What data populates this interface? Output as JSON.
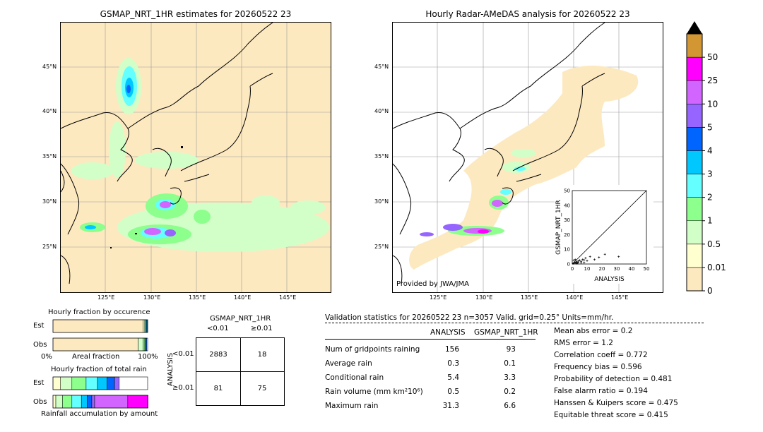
{
  "left_map": {
    "title": "GSMAP_NRT_1HR estimates for 20260522 23",
    "lat_labels": [
      "45°N",
      "40°N",
      "35°N",
      "30°N",
      "25°N"
    ],
    "lon_labels": [
      "125°E",
      "130°E",
      "135°E",
      "140°E",
      "145°E"
    ]
  },
  "right_map": {
    "title": "Hourly Radar-AMeDAS analysis for 20260522 23",
    "lat_labels": [
      "45°N",
      "40°N",
      "35°N",
      "30°N",
      "25°N"
    ],
    "lon_labels": [
      "125°E",
      "130°E",
      "135°E",
      "140°E",
      "145°E"
    ],
    "credit": "Provided by JWA/JMA"
  },
  "colorbar": {
    "levels": [
      "0",
      "0.01",
      "0.5",
      "1",
      "2",
      "3",
      "4",
      "5",
      "10",
      "25",
      "50"
    ],
    "colors": [
      "#fde9c0",
      "#ffffd0",
      "#d2ffc8",
      "#8cff8c",
      "#64ffff",
      "#00c8ff",
      "#0064ff",
      "#9664ff",
      "#d264ff",
      "#ff00ff",
      "#d29632"
    ]
  },
  "scatter_inset": {
    "xlabel": "ANALYSIS",
    "ylabel": "GSMAP_NRT_1HR",
    "ticks": [
      "0",
      "10",
      "20",
      "30",
      "40",
      "50"
    ]
  },
  "occurrence": {
    "title": "Hourly fraction by occurence",
    "est_label": "Est",
    "obs_label": "Obs",
    "axis_left": "0%",
    "axis_mid": "Areal fraction",
    "axis_right": "100%"
  },
  "total_rain": {
    "title": "Hourly fraction of total rain",
    "est_label": "Est",
    "obs_label": "Obs",
    "footer": "Rainfall accumulation by amount"
  },
  "contingency": {
    "title": "GSMAP_NRT_1HR",
    "col_lt": "<0.01",
    "col_ge": "≥0.01",
    "row_axis": "ANALYSIS",
    "row_lt": "<0.01",
    "row_ge": "≥0.01",
    "a": "2883",
    "b": "18",
    "c": "81",
    "d": "75"
  },
  "validation": {
    "header": "Validation statistics for 20260522 23  n=3057 Valid. grid=0.25° Units=mm/hr.",
    "col_analysis": "ANALYSIS",
    "col_gsmap": "GSMAP_NRT_1HR",
    "rows": [
      {
        "label": "Num of gridpoints raining",
        "analysis": "156",
        "gsmap": "93"
      },
      {
        "label": "Average rain",
        "analysis": "0.3",
        "gsmap": "0.1"
      },
      {
        "label": "Conditional rain",
        "analysis": "5.4",
        "gsmap": "3.3"
      },
      {
        "label": "Rain volume (mm km²10⁶)",
        "analysis": "0.5",
        "gsmap": "0.2"
      },
      {
        "label": "Maximum rain",
        "analysis": "31.3",
        "gsmap": "6.6"
      }
    ],
    "scores": [
      "Mean abs error =    0.2",
      "RMS error =    1.2",
      "Correlation coeff =  0.772",
      "Frequency bias =  0.596",
      "Probability of detection =  0.481",
      "False alarm ratio =  0.194",
      "Hanssen & Kuipers score =  0.475",
      "Equitable threat score =  0.415"
    ]
  },
  "chart_data": [
    {
      "type": "scatter",
      "xlabel": "ANALYSIS",
      "ylabel": "GSMAP_NRT_1HR",
      "xlim": [
        0,
        50
      ],
      "ylim": [
        0,
        50
      ],
      "x": [
        0.5,
        1,
        1.5,
        2,
        2.5,
        3,
        3.5,
        4,
        5,
        6,
        7,
        8,
        9,
        10,
        12,
        15,
        18,
        22,
        31.3,
        1,
        2,
        3,
        4,
        6,
        8
      ],
      "y": [
        0.3,
        0.5,
        1,
        0.8,
        1.2,
        1.5,
        0.6,
        2,
        2.5,
        1.8,
        3,
        1,
        4,
        2.2,
        5,
        3,
        4.5,
        6.6,
        5,
        2.5,
        3,
        0.4,
        1.1,
        0.9,
        2.8
      ]
    },
    {
      "type": "bar",
      "title": "Hourly fraction by occurence",
      "categories": [
        "Est",
        "Obs"
      ],
      "series": [
        {
          "values": [
            0.95,
            0.9
          ]
        },
        {
          "values": [
            0.02,
            0.05
          ]
        },
        {
          "values": [
            0.01,
            0.02
          ]
        },
        {
          "values": [
            0.01,
            0.01
          ]
        },
        {
          "values": [
            0.01,
            0.01
          ]
        }
      ]
    },
    {
      "type": "bar",
      "title": "Hourly fraction of total rain",
      "categories": [
        "Est",
        "Obs"
      ],
      "series": [
        {
          "values": [
            0.08,
            0.03
          ]
        },
        {
          "values": [
            0.12,
            0.07
          ]
        },
        {
          "values": [
            0.15,
            0.1
          ]
        },
        {
          "values": [
            0.12,
            0.1
          ]
        },
        {
          "values": [
            0.1,
            0.06
          ]
        },
        {
          "values": [
            0.08,
            0.05
          ]
        },
        {
          "values": [
            0.05,
            0.03
          ]
        },
        {
          "values": [
            0.0,
            0.35
          ]
        },
        {
          "values": [
            0.0,
            0.22
          ]
        },
        {
          "values": [
            0.0,
            0.07
          ]
        }
      ]
    }
  ]
}
